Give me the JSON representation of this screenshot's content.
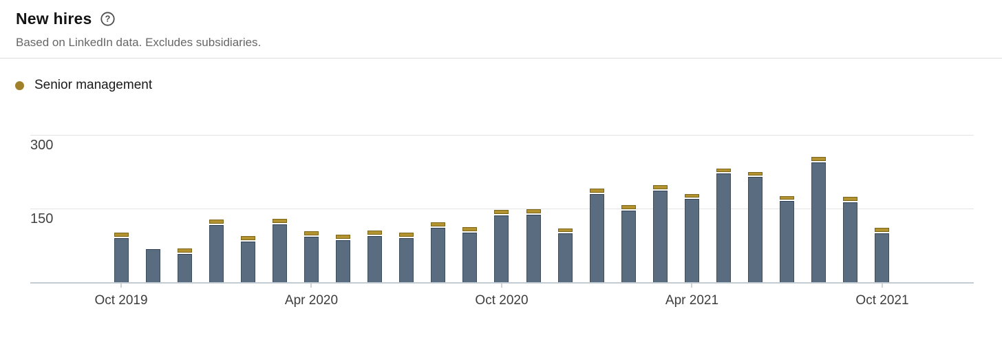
{
  "header": {
    "title": "New hires",
    "subtitle": "Based on LinkedIn data. Excludes subsidiaries.",
    "help_icon": "question-mark-circle-icon"
  },
  "legend": {
    "items": [
      {
        "label": "Senior management",
        "color": "#a08029"
      }
    ]
  },
  "colors": {
    "background": "#ffffff",
    "divider": "#dcdcdc",
    "gridline": "#e4e4e4",
    "baseline": "#c3cbd3",
    "tick": "#cfd3d8",
    "axis_text": "#424242",
    "bar_fill": "#5a6d80",
    "bar_border": "#3a4c5e",
    "senior_fill": "#b3932f",
    "senior_border": "#7b6317",
    "legend_dot": "#a08029"
  },
  "chart_data": {
    "type": "bar",
    "stacked": true,
    "title": "New hires",
    "xlabel": "",
    "ylabel": "",
    "ylim": [
      0,
      330
    ],
    "ytick_values": [
      150,
      300
    ],
    "xtick_labels": [
      "Oct 2019",
      "Apr 2020",
      "Oct 2020",
      "Apr 2021",
      "Oct 2021"
    ],
    "grid": "horizontal",
    "legend_position": "top-left",
    "categories": [
      "Oct 2019",
      "Nov 2019",
      "Dec 2019",
      "Jan 2020",
      "Feb 2020",
      "Mar 2020",
      "Apr 2020",
      "May 2020",
      "Jun 2020",
      "Jul 2020",
      "Aug 2020",
      "Sep 2020",
      "Oct 2020",
      "Nov 2020",
      "Dec 2020",
      "Jan 2021",
      "Feb 2021",
      "Mar 2021",
      "Apr 2021",
      "May 2021",
      "Jun 2021",
      "Jul 2021",
      "Aug 2021",
      "Sep 2021",
      "Oct 2021"
    ],
    "series": [
      {
        "name": "New hires (other)",
        "color": "#5a6d80",
        "values": [
          90,
          67,
          58,
          117,
          83,
          118,
          93,
          86,
          94,
          90,
          111,
          101,
          136,
          138,
          99,
          180,
          146,
          187,
          169,
          221,
          214,
          165,
          244,
          163,
          100
        ]
      },
      {
        "name": "Senior management",
        "color": "#b3932f",
        "values": [
          8,
          0,
          8,
          8,
          8,
          8,
          8,
          8,
          8,
          8,
          8,
          8,
          8,
          8,
          8,
          8,
          8,
          8,
          8,
          8,
          8,
          8,
          8,
          8,
          8
        ]
      }
    ]
  }
}
